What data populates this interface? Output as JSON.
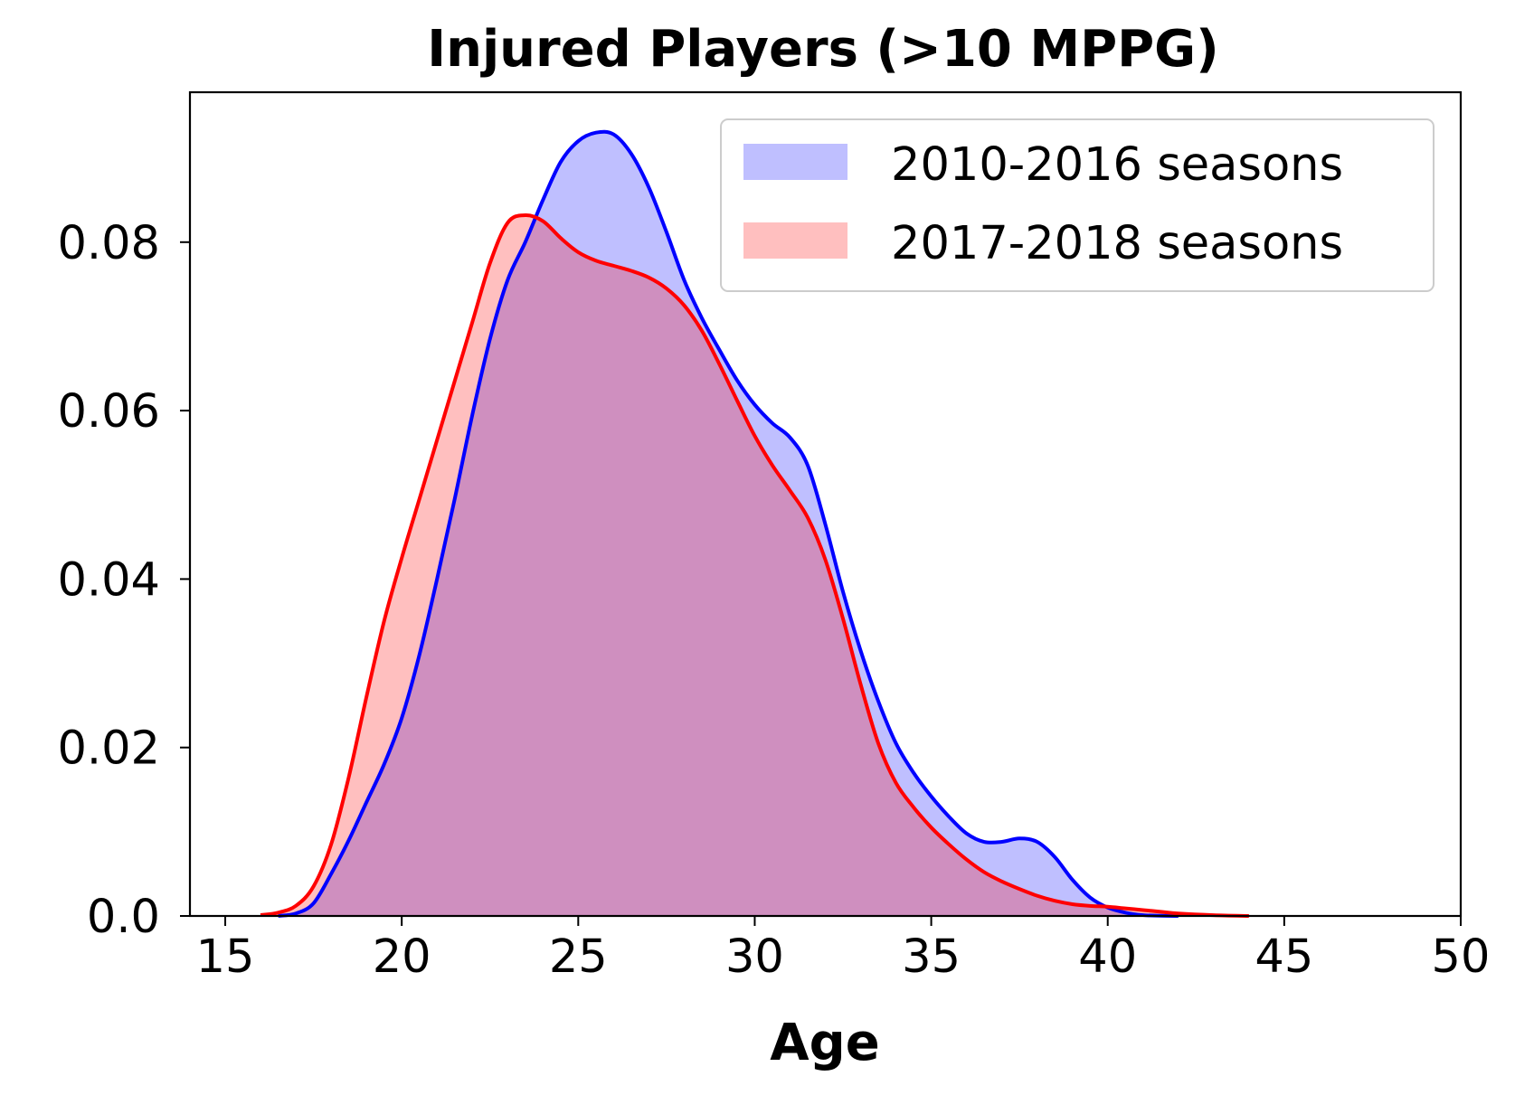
{
  "chart_data": {
    "type": "area",
    "title": "Injured Players (>10 MPPG)",
    "xlabel": "Age",
    "ylabel": "",
    "xlim": [
      14,
      50
    ],
    "ylim": [
      0,
      0.0978
    ],
    "xticks": [
      15,
      20,
      25,
      30,
      35,
      40,
      45,
      50
    ],
    "xtick_labels": [
      "15",
      "20",
      "25",
      "30",
      "35",
      "40",
      "45",
      "50"
    ],
    "yticks": [
      0.0,
      0.02,
      0.04,
      0.06,
      0.08
    ],
    "ytick_labels": [
      "0.0",
      "0.02",
      "0.04",
      "0.06",
      "0.08"
    ],
    "grid": false,
    "legend_position": "top-right",
    "series": [
      {
        "name": "2010-2016 seasons",
        "line_color": "#0000ff",
        "fill_color": "#0000ff",
        "fill_opacity": 0.25,
        "x": [
          16.5,
          17.0,
          17.5,
          18.0,
          18.5,
          19.0,
          19.5,
          20.0,
          20.5,
          21.0,
          21.5,
          22.0,
          22.5,
          23.0,
          23.5,
          24.0,
          24.5,
          25.0,
          25.5,
          26.0,
          26.5,
          27.0,
          27.5,
          28.0,
          28.5,
          29.0,
          29.5,
          30.0,
          30.5,
          31.0,
          31.5,
          32.0,
          32.5,
          33.0,
          33.5,
          34.0,
          34.5,
          35.0,
          35.5,
          36.0,
          36.5,
          37.0,
          37.5,
          38.0,
          38.5,
          39.0,
          39.5,
          40.0,
          40.5,
          41.0,
          41.5,
          42.0
        ],
        "y": [
          0.0,
          0.0003,
          0.0015,
          0.005,
          0.009,
          0.0135,
          0.018,
          0.0235,
          0.031,
          0.04,
          0.0495,
          0.0595,
          0.0685,
          0.0755,
          0.08,
          0.085,
          0.0895,
          0.092,
          0.093,
          0.0928,
          0.0905,
          0.0865,
          0.0812,
          0.0755,
          0.071,
          0.0672,
          0.0636,
          0.0607,
          0.0585,
          0.0568,
          0.0535,
          0.0465,
          0.0385,
          0.0315,
          0.0255,
          0.0205,
          0.017,
          0.0142,
          0.0118,
          0.0098,
          0.0088,
          0.0088,
          0.0092,
          0.0088,
          0.007,
          0.0043,
          0.0022,
          0.001,
          0.0004,
          0.0001,
          3e-05,
          0.0
        ]
      },
      {
        "name": "2017-2018 seasons",
        "line_color": "#ff0000",
        "fill_color": "#ff0000",
        "fill_opacity": 0.25,
        "x": [
          16.0,
          16.5,
          17.0,
          17.5,
          18.0,
          18.5,
          19.0,
          19.5,
          20.0,
          20.5,
          21.0,
          21.5,
          22.0,
          22.5,
          23.0,
          23.5,
          24.0,
          24.5,
          25.0,
          25.5,
          26.0,
          26.5,
          27.0,
          27.5,
          28.0,
          28.5,
          29.0,
          29.5,
          30.0,
          30.5,
          31.0,
          31.5,
          32.0,
          32.5,
          33.0,
          33.5,
          34.0,
          34.5,
          35.0,
          35.5,
          36.0,
          36.5,
          37.0,
          37.5,
          38.0,
          38.5,
          39.0,
          39.5,
          40.0,
          40.5,
          41.0,
          41.5,
          42.0,
          43.0,
          44.0
        ],
        "y": [
          0.0001,
          0.0004,
          0.0012,
          0.0035,
          0.0085,
          0.0165,
          0.026,
          0.035,
          0.0425,
          0.0495,
          0.0565,
          0.0635,
          0.0705,
          0.0775,
          0.0823,
          0.0832,
          0.0825,
          0.0805,
          0.0788,
          0.0778,
          0.0772,
          0.0766,
          0.0758,
          0.0745,
          0.0725,
          0.0695,
          0.0655,
          0.0612,
          0.057,
          0.0535,
          0.0505,
          0.0473,
          0.0423,
          0.0353,
          0.0275,
          0.0205,
          0.0158,
          0.0129,
          0.0105,
          0.0085,
          0.0067,
          0.0052,
          0.0041,
          0.0032,
          0.0024,
          0.0018,
          0.0014,
          0.0012,
          0.0011,
          0.0009,
          0.0007,
          0.0005,
          0.0003,
          0.0001,
          0.0
        ]
      }
    ]
  }
}
